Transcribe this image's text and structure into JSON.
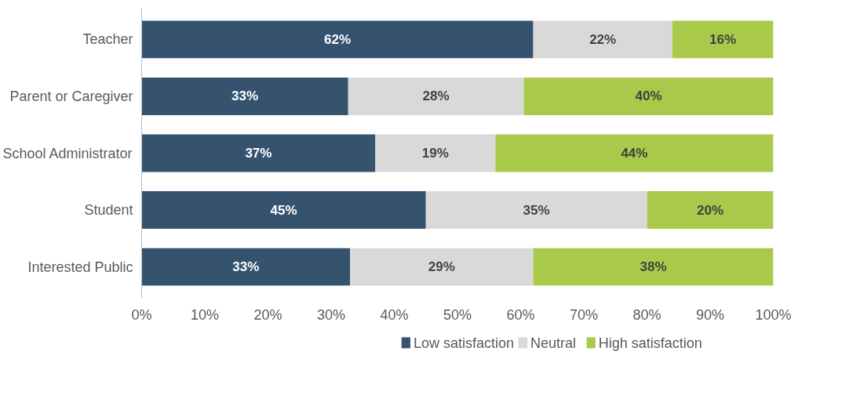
{
  "chart_data": {
    "type": "bar",
    "orientation": "horizontal",
    "stacked": true,
    "categories": [
      "Teacher",
      "Parent or Caregiver",
      "School Administrator",
      "Student",
      "Interested Public"
    ],
    "series": [
      {
        "name": "Low satisfaction",
        "color": "#35536f",
        "values": [
          62,
          32.7,
          37,
          45,
          33
        ],
        "value_labels": [
          "62%",
          "33%",
          "37%",
          "45%",
          "33%"
        ]
      },
      {
        "name": "Neutral",
        "color": "#d9d9d9",
        "values": [
          22,
          27.8,
          19,
          35,
          29
        ],
        "value_labels": [
          "22%",
          "28%",
          "19%",
          "35%",
          "29%"
        ]
      },
      {
        "name": "High satisfaction",
        "color": "#a9c94a",
        "values": [
          16,
          39.5,
          44,
          20,
          38
        ],
        "value_labels": [
          "16%",
          "40%",
          "44%",
          "20%",
          "38%"
        ]
      }
    ],
    "xlim": [
      0,
      100
    ],
    "xticks": [
      {
        "value": 0,
        "label": "0%"
      },
      {
        "value": 10,
        "label": "10%"
      },
      {
        "value": 20,
        "label": "20%"
      },
      {
        "value": 30,
        "label": "30%"
      },
      {
        "value": 40,
        "label": "40%"
      },
      {
        "value": 50,
        "label": "50%"
      },
      {
        "value": 60,
        "label": "60%"
      },
      {
        "value": 70,
        "label": "70%"
      },
      {
        "value": 80,
        "label": "80%"
      },
      {
        "value": 90,
        "label": "90%"
      },
      {
        "value": 100,
        "label": "100%"
      }
    ],
    "grid": false,
    "legend": "bottom"
  }
}
